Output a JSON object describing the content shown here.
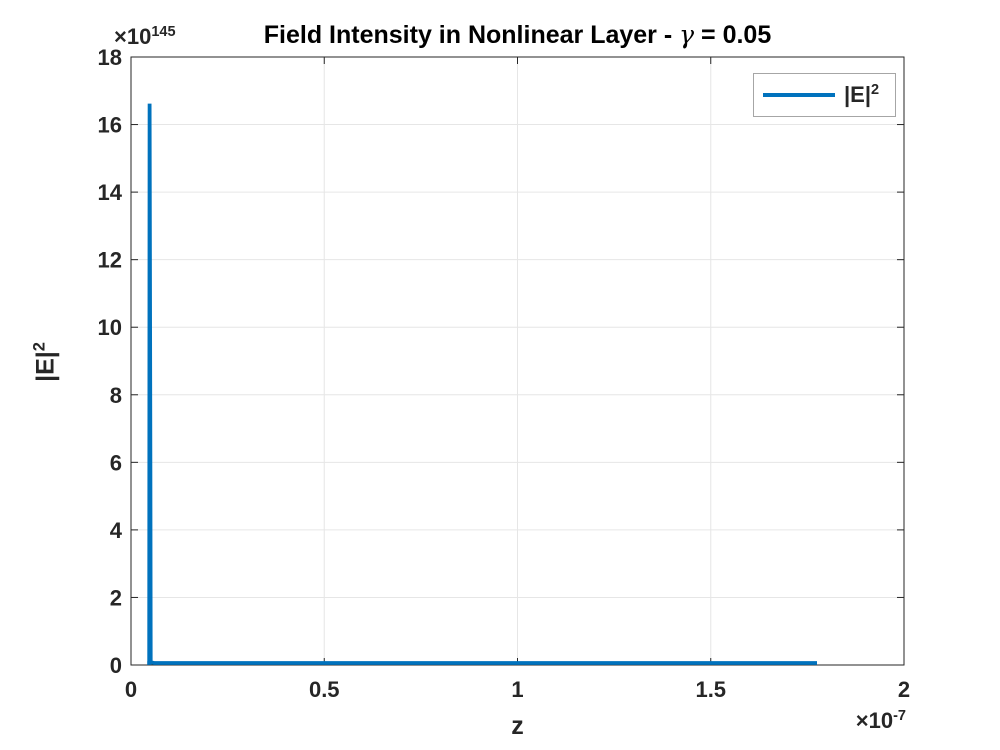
{
  "figure": {
    "background": "#ffffff"
  },
  "title": {
    "main": "Field Intensity in Nonlinear Layer - ",
    "gamma": "γ",
    "suffix": " = 0.05"
  },
  "axes": {
    "x_label": "z",
    "y_label": {
      "base": "|E|",
      "sup": "2"
    },
    "y_multiplier": {
      "base": "×10",
      "sup": "145"
    },
    "x_multiplier": {
      "base": "×10",
      "sup": "-7"
    }
  },
  "legend": {
    "position": "top-right",
    "entries": [
      {
        "label": "|E|^2",
        "label_base": "|E|",
        "label_sup": "2",
        "color": "#0072BD"
      }
    ]
  },
  "chart_data": {
    "type": "line",
    "title": "Field Intensity in Nonlinear Layer - γ = 0.05",
    "xlabel": "z",
    "ylabel": "|E|^2",
    "x_unit_scale": "1e-7",
    "y_unit_scale": "1e145",
    "xlim": [
      0,
      2
    ],
    "ylim": [
      0,
      18
    ],
    "xticks": [
      0,
      0.5,
      1,
      1.5,
      2
    ],
    "xtick_labels": [
      "0",
      "0.5",
      "1",
      "1.5",
      "2"
    ],
    "yticks": [
      0,
      2,
      4,
      6,
      8,
      10,
      12,
      14,
      16,
      18
    ],
    "ytick_labels": [
      "0",
      "2",
      "4",
      "6",
      "8",
      "10",
      "12",
      "14",
      "16",
      "18"
    ],
    "grid": true,
    "legend_position": "top-right",
    "series": [
      {
        "name": "|E|^2",
        "color": "#0072BD",
        "line_width": 3.8,
        "points": [
          [
            0.042,
            0.06
          ],
          [
            0.0472,
            0.06
          ],
          [
            0.048,
            16.62
          ],
          [
            0.0503,
            5.77
          ],
          [
            0.051,
            0.08
          ],
          [
            0.06,
            0.06
          ],
          [
            0.25,
            0.06
          ],
          [
            0.5,
            0.06
          ],
          [
            0.75,
            0.06
          ],
          [
            1.0,
            0.06
          ],
          [
            1.25,
            0.06
          ],
          [
            1.5,
            0.06
          ],
          [
            1.775,
            0.06
          ]
        ]
      }
    ],
    "colors": {
      "line": "#0072BD",
      "grid": "#e6e6e6",
      "axis": "#262626",
      "text": "#262626",
      "legend_border": "#a6a6a6"
    }
  }
}
